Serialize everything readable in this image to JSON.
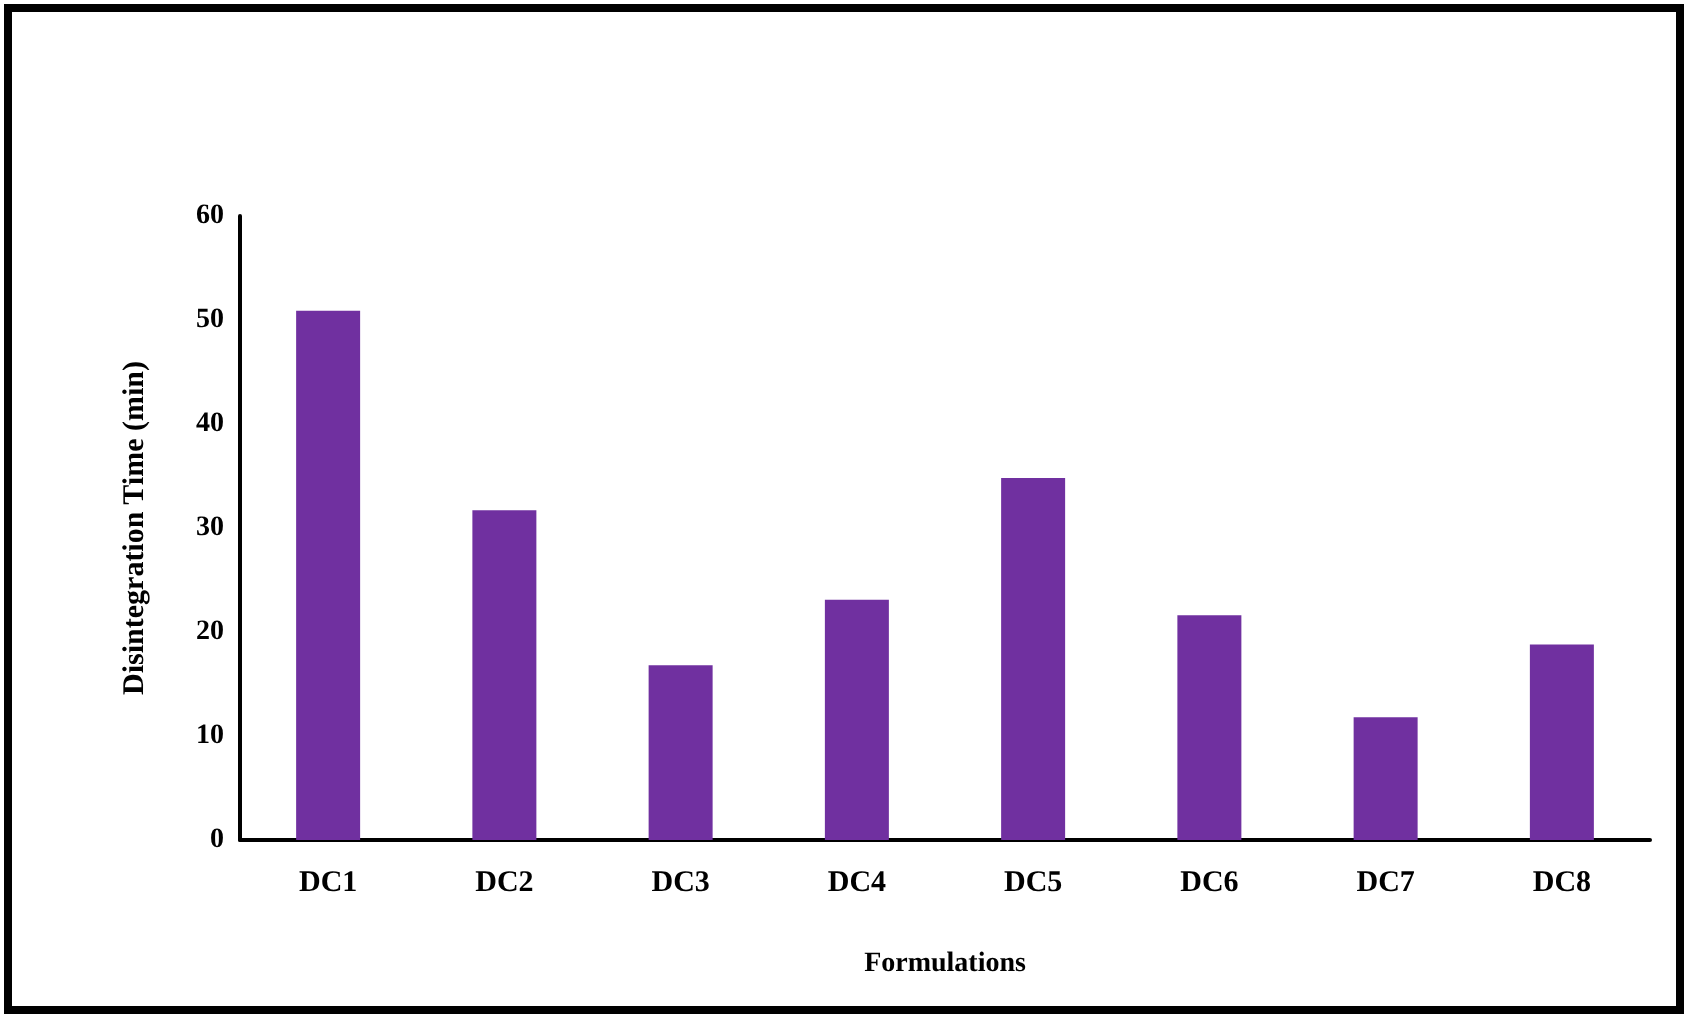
{
  "chart_data": {
    "type": "bar",
    "xlabel": "Formulations",
    "ylabel": "Disintegration Time (min)",
    "categories": [
      "DC1",
      "DC2",
      "DC3",
      "DC4",
      "DC5",
      "DC6",
      "DC7",
      "DC8"
    ],
    "values": [
      50.9,
      31.7,
      16.8,
      23.1,
      34.8,
      21.6,
      11.8,
      18.8
    ],
    "color": "#7030a0",
    "ylim": [
      0,
      60
    ],
    "yticks": [
      0,
      10,
      20,
      30,
      40,
      50,
      60
    ]
  }
}
